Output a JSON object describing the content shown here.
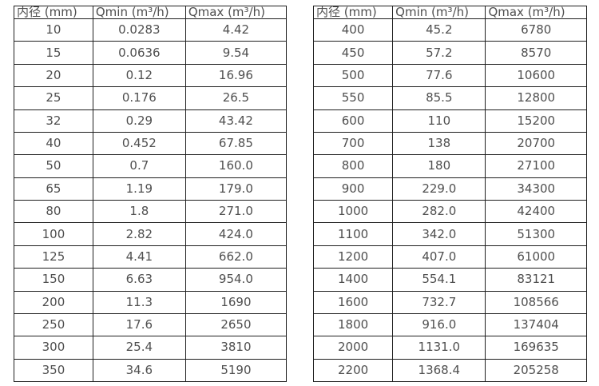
{
  "page": {
    "background_color": "#ffffff",
    "text_color": "#4f4f4f",
    "border_color": "#1f1f1f"
  },
  "tables": [
    {
      "name": "flow-range-small-diameters",
      "headers": [
        "内径 (mm)",
        "Qmin (m³/h)",
        "Qmax (m³/h)"
      ],
      "rows": [
        [
          "10",
          "0.0283",
          "4.42"
        ],
        [
          "15",
          "0.0636",
          "9.54"
        ],
        [
          "20",
          "0.12",
          "16.96"
        ],
        [
          "25",
          "0.176",
          "26.5"
        ],
        [
          "32",
          "0.29",
          "43.42"
        ],
        [
          "40",
          "0.452",
          "67.85"
        ],
        [
          "50",
          "0.7",
          "160.0"
        ],
        [
          "65",
          "1.19",
          "179.0"
        ],
        [
          "80",
          "1.8",
          "271.0"
        ],
        [
          "100",
          "2.82",
          "424.0"
        ],
        [
          "125",
          "4.41",
          "662.0"
        ],
        [
          "150",
          "6.63",
          "954.0"
        ],
        [
          "200",
          "11.3",
          "1690"
        ],
        [
          "250",
          "17.6",
          "2650"
        ],
        [
          "300",
          "25.4",
          "3810"
        ],
        [
          "350",
          "34.6",
          "5190"
        ]
      ]
    },
    {
      "name": "flow-range-large-diameters",
      "headers": [
        "内径 (mm)",
        "Qmin (m³/h)",
        "Qmax (m³/h)"
      ],
      "rows": [
        [
          "400",
          "45.2",
          "6780"
        ],
        [
          "450",
          "57.2",
          "8570"
        ],
        [
          "500",
          "77.6",
          "10600"
        ],
        [
          "550",
          "85.5",
          "12800"
        ],
        [
          "600",
          "110",
          "15200"
        ],
        [
          "700",
          "138",
          "20700"
        ],
        [
          "800",
          "180",
          "27100"
        ],
        [
          "900",
          "229.0",
          "34300"
        ],
        [
          "1000",
          "282.0",
          "42400"
        ],
        [
          "1100",
          "342.0",
          "51300"
        ],
        [
          "1200",
          "407.0",
          "61000"
        ],
        [
          "1400",
          "554.1",
          "83121"
        ],
        [
          "1600",
          "732.7",
          "108566"
        ],
        [
          "1800",
          "916.0",
          "137404"
        ],
        [
          "2000",
          "1131.0",
          "169635"
        ],
        [
          "2200",
          "1368.4",
          "205258"
        ]
      ]
    }
  ]
}
